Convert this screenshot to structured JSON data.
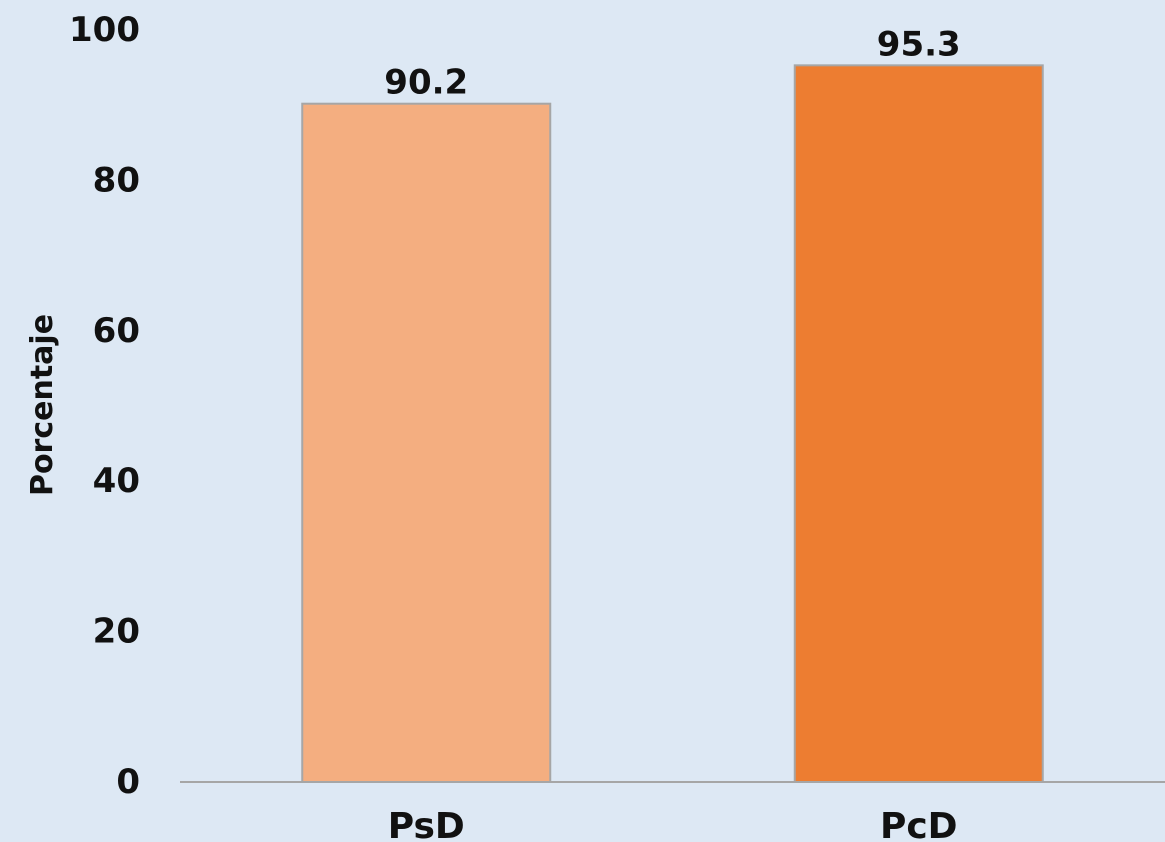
{
  "chart_data": {
    "type": "bar",
    "title": "",
    "xlabel": "",
    "ylabel": "Porcentaje",
    "categories": [
      "PsD",
      "PcD"
    ],
    "values": [
      90.2,
      95.3
    ],
    "data_labels": [
      "90.2",
      "95.3"
    ],
    "bar_colors": [
      "#f4ae80",
      "#ed7d31"
    ],
    "ylim": [
      0,
      100
    ],
    "yticks": [
      0,
      20,
      40,
      60,
      80,
      100
    ],
    "ytick_labels": [
      "0",
      "20",
      "40",
      "60",
      "80",
      "100"
    ],
    "grid": false,
    "legend": "none"
  },
  "colors": {
    "background": "#dde8f4",
    "axis_line": "#a6a6a6",
    "bar_border": "#a6a6a6",
    "text": "#111111"
  }
}
